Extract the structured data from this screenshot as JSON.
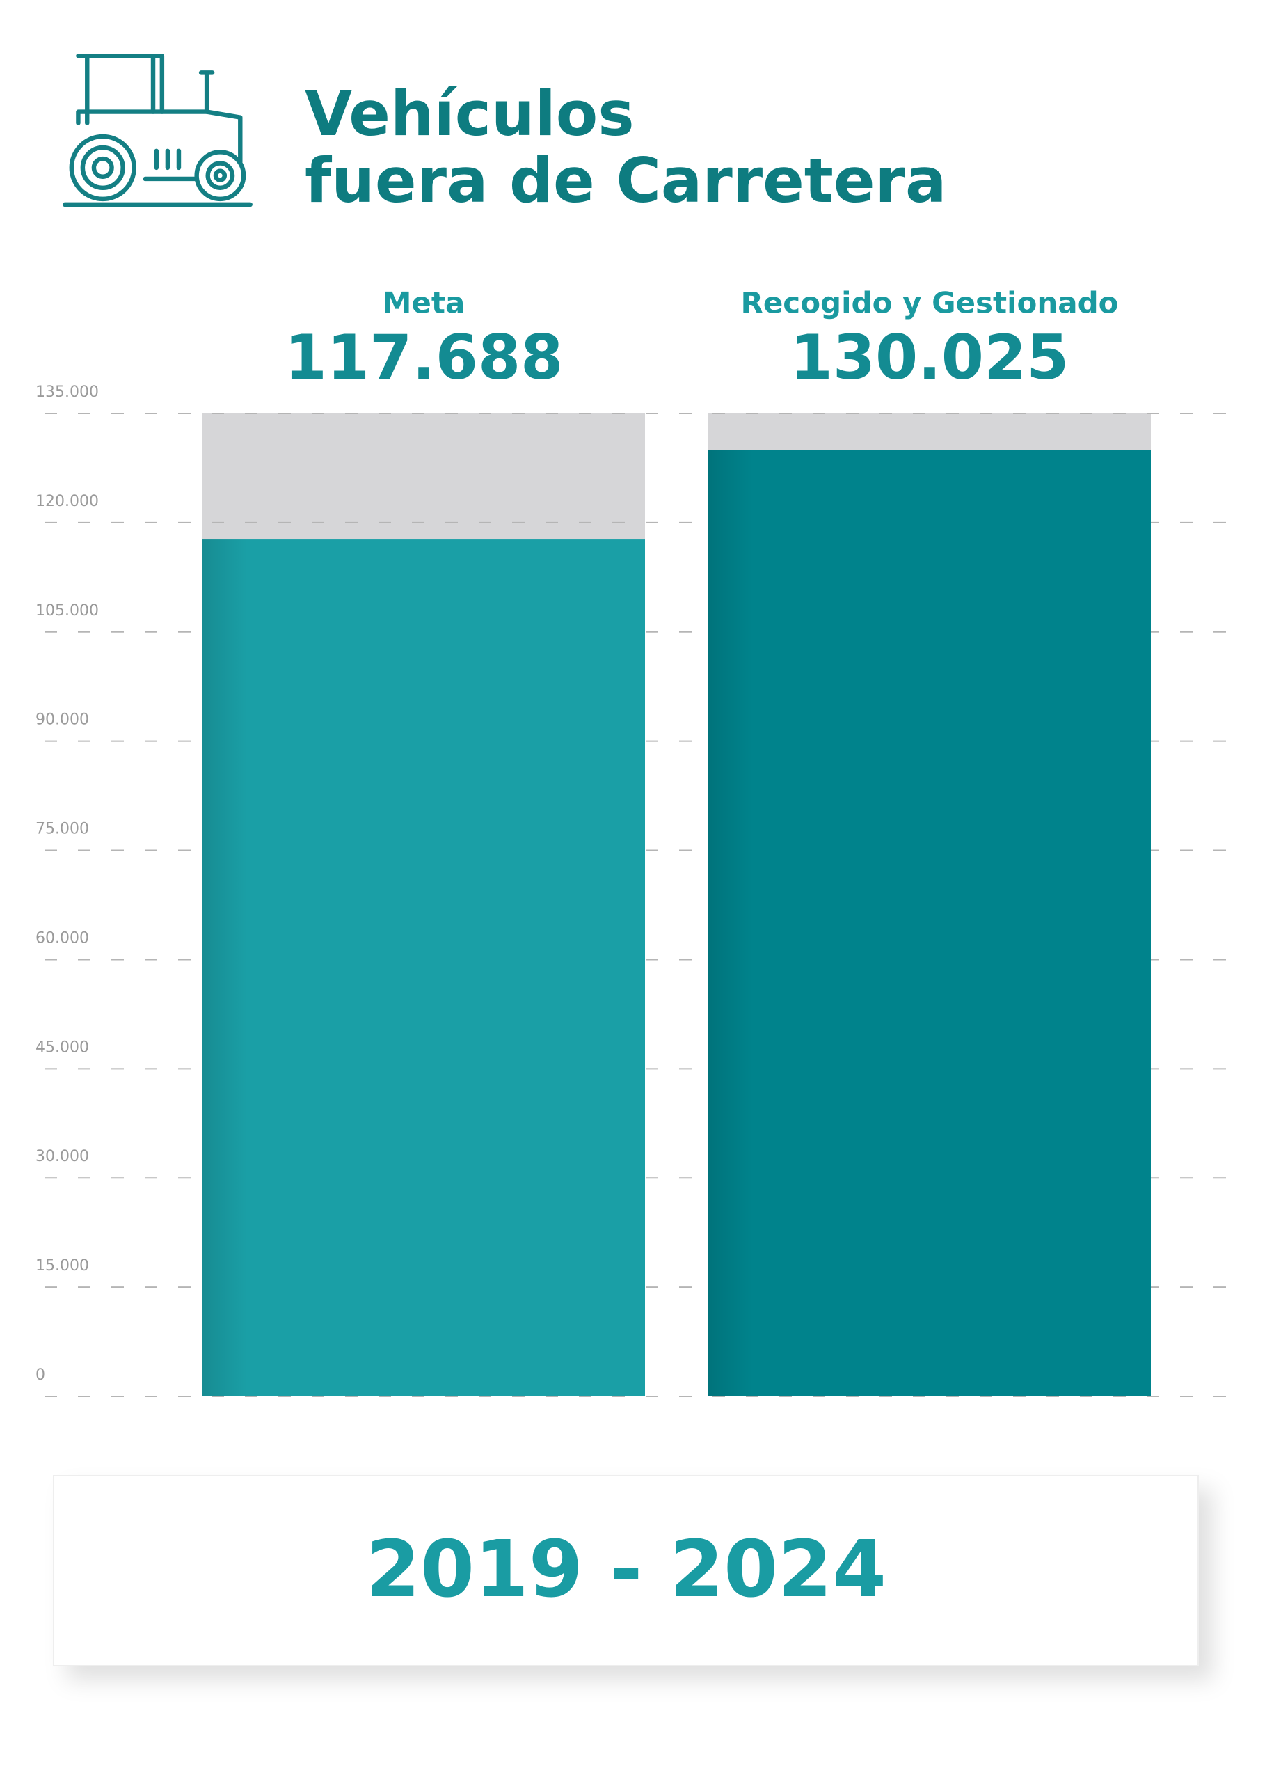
{
  "chart_data": {
    "type": "bar",
    "title": [
      "Vehículos",
      "fuera de Carretera"
    ],
    "categories": [
      "Meta",
      "Recogido y Gestionado"
    ],
    "values": [
      117688,
      130025
    ],
    "value_labels": [
      "117.688",
      "130.025"
    ],
    "colors": [
      "#1a9fa6",
      "#00838c"
    ],
    "ylim": [
      0,
      135000
    ],
    "yticks": [
      0,
      {
        "value": 15000,
        "label": "15.000"
      },
      {
        "value": 30000,
        "label": "30.000"
      },
      {
        "value": 45000,
        "label": "45.000"
      },
      {
        "value": 60000,
        "label": "60.000"
      },
      {
        "value": 75000,
        "label": "75.000"
      },
      {
        "value": 90000,
        "label": "90.000"
      },
      {
        "value": 105000,
        "label": "105.000"
      },
      {
        "value": 120000,
        "label": "120.000"
      },
      {
        "value": 135000,
        "label": "135.000"
      }
    ],
    "grid": true,
    "period": "2019 - 2024"
  }
}
